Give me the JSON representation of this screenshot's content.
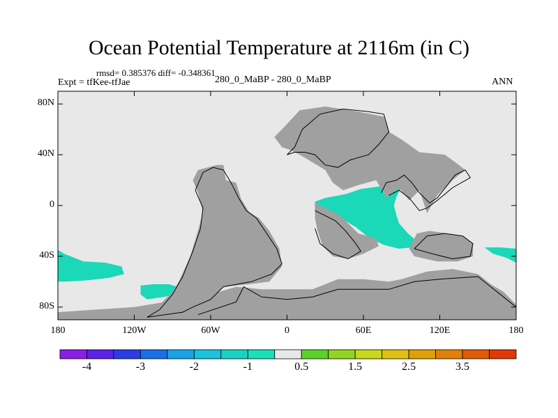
{
  "chart_data": {
    "type": "heatmap",
    "title": "Ocean Potential Temperature at 2116m (in C)",
    "stats_line": "rmsd= 0.385376 diff= -0.348361",
    "experiment_label": "Expt = tfKee-tfJae",
    "center_label": "280_0_MaBP - 280_0_MaBP",
    "season": "ANN",
    "xlim": [
      -180,
      180
    ],
    "ylim": [
      -90,
      90
    ],
    "x_ticks": [
      {
        "value": -180,
        "label": "180"
      },
      {
        "value": -120,
        "label": "120W"
      },
      {
        "value": -60,
        "label": "60W"
      },
      {
        "value": 0,
        "label": "0"
      },
      {
        "value": 60,
        "label": "60E"
      },
      {
        "value": 120,
        "label": "120E"
      },
      {
        "value": 180,
        "label": "180"
      }
    ],
    "y_ticks": [
      {
        "value": 80,
        "label": "80N"
      },
      {
        "value": 40,
        "label": "40N"
      },
      {
        "value": 0,
        "label": "0"
      },
      {
        "value": -40,
        "label": "40S"
      },
      {
        "value": -80,
        "label": "80S"
      }
    ],
    "colorbar": {
      "colors": [
        "#8a1ee6",
        "#5a22e6",
        "#2a3ce6",
        "#1a6ee6",
        "#1aa2e6",
        "#1ac2dc",
        "#1ad2c2",
        "#1ae0ba",
        "#e8e8e8",
        "#5ad228",
        "#92d424",
        "#c8d81c",
        "#e0c010",
        "#e0a008",
        "#e08008",
        "#e05a08",
        "#e03808"
      ],
      "labels": [
        "-4",
        "-3",
        "-2",
        "-1",
        "0.5",
        "1.5",
        "2.5",
        "3.5"
      ],
      "label_levels": [
        -4,
        -3,
        -2,
        -1,
        0.5,
        1.5,
        2.5,
        3.5
      ],
      "levels": [
        -4,
        -3.5,
        -3,
        -2.5,
        -2,
        -1.5,
        -1,
        -0.5,
        0.5,
        1,
        1.5,
        2,
        2.5,
        3,
        3.5,
        4
      ]
    },
    "background_value_color": "#e8e8e8",
    "land_color": "#a0a0a0",
    "anomaly_color": "#1ad8b8",
    "anomaly_regions": [
      {
        "name": "tropical Indian Ocean",
        "polygon": [
          [
            22,
            3
          ],
          [
            30,
            6
          ],
          [
            46,
            9
          ],
          [
            58,
            13
          ],
          [
            72,
            15
          ],
          [
            84,
            19
          ],
          [
            88,
            20
          ],
          [
            90,
            15
          ],
          [
            86,
            7
          ],
          [
            84,
            0
          ],
          [
            86,
            -8
          ],
          [
            88,
            -14
          ],
          [
            95,
            -22
          ],
          [
            102,
            -28
          ],
          [
            98,
            -33
          ],
          [
            88,
            -34
          ],
          [
            76,
            -31
          ],
          [
            64,
            -25
          ],
          [
            54,
            -17
          ],
          [
            44,
            -11
          ],
          [
            34,
            -7
          ],
          [
            26,
            -4
          ],
          [
            22,
            -1
          ]
        ]
      },
      {
        "name": "South Pacific west",
        "polygon": [
          [
            -180,
            -35
          ],
          [
            -175,
            -38
          ],
          [
            -160,
            -44
          ],
          [
            -143,
            -45
          ],
          [
            -130,
            -48
          ],
          [
            -128,
            -54
          ],
          [
            -140,
            -57
          ],
          [
            -158,
            -59
          ],
          [
            -174,
            -60
          ],
          [
            -180,
            -60
          ]
        ]
      },
      {
        "name": "South Pacific east",
        "polygon": [
          [
            -115,
            -63
          ],
          [
            -105,
            -62
          ],
          [
            -93,
            -62
          ],
          [
            -86,
            -64
          ],
          [
            -87,
            -70
          ],
          [
            -97,
            -72
          ],
          [
            -110,
            -74
          ],
          [
            -115,
            -70
          ]
        ]
      },
      {
        "name": "South Pacific dateline",
        "polygon": [
          [
            155,
            -33
          ],
          [
            168,
            -33
          ],
          [
            180,
            -34
          ],
          [
            180,
            -45
          ],
          [
            172,
            -41
          ],
          [
            162,
            -38
          ]
        ]
      }
    ],
    "land_regions": [
      {
        "name": "Americas",
        "polygon": [
          [
            -70,
            28
          ],
          [
            -55,
            32
          ],
          [
            -50,
            32
          ],
          [
            -48,
            20
          ],
          [
            -40,
            18
          ],
          [
            -36,
            5
          ],
          [
            -30,
            -5
          ],
          [
            -22,
            -10
          ],
          [
            -14,
            -20
          ],
          [
            -6,
            -34
          ],
          [
            -4,
            -48
          ],
          [
            -14,
            -60
          ],
          [
            -30,
            -62
          ],
          [
            -50,
            -64
          ],
          [
            -60,
            -74
          ],
          [
            -74,
            -80
          ],
          [
            -84,
            -86
          ],
          [
            -110,
            -88
          ],
          [
            -90,
            -68
          ],
          [
            -85,
            -60
          ],
          [
            -76,
            -40
          ],
          [
            -70,
            -20
          ],
          [
            -66,
            -5
          ],
          [
            -70,
            10
          ],
          [
            -74,
            20
          ]
        ]
      },
      {
        "name": "Eurasia",
        "polygon": [
          [
            10,
            75
          ],
          [
            30,
            78
          ],
          [
            56,
            74
          ],
          [
            76,
            70
          ],
          [
            80,
            58
          ],
          [
            90,
            52
          ],
          [
            104,
            42
          ],
          [
            124,
            40
          ],
          [
            135,
            32
          ],
          [
            140,
            28
          ],
          [
            130,
            20
          ],
          [
            118,
            8
          ],
          [
            110,
            -6
          ],
          [
            104,
            12
          ],
          [
            96,
            4
          ],
          [
            88,
            14
          ],
          [
            78,
            6
          ],
          [
            70,
            20
          ],
          [
            56,
            16
          ],
          [
            44,
            12
          ],
          [
            36,
            18
          ],
          [
            30,
            28
          ],
          [
            20,
            34
          ],
          [
            10,
            40
          ],
          [
            2,
            44
          ],
          [
            -4,
            46
          ],
          [
            -10,
            54
          ],
          [
            -4,
            60
          ]
        ]
      },
      {
        "name": "Africa",
        "polygon": [
          [
            22,
            2
          ],
          [
            34,
            -4
          ],
          [
            42,
            -8
          ],
          [
            50,
            -16
          ],
          [
            56,
            -22
          ],
          [
            70,
            -26
          ],
          [
            72,
            -32
          ],
          [
            60,
            -38
          ],
          [
            48,
            -42
          ],
          [
            36,
            -40
          ],
          [
            28,
            -32
          ],
          [
            24,
            -20
          ],
          [
            22,
            -10
          ]
        ]
      },
      {
        "name": "Australia",
        "polygon": [
          [
            102,
            -22
          ],
          [
            112,
            -20
          ],
          [
            126,
            -22
          ],
          [
            138,
            -24
          ],
          [
            146,
            -30
          ],
          [
            146,
            -40
          ],
          [
            134,
            -44
          ],
          [
            118,
            -44
          ],
          [
            100,
            -40
          ],
          [
            96,
            -34
          ]
        ]
      },
      {
        "name": "Antarctica",
        "polygon": [
          [
            -180,
            -84
          ],
          [
            -150,
            -82
          ],
          [
            -120,
            -80
          ],
          [
            -96,
            -76
          ],
          [
            -80,
            -68
          ],
          [
            -60,
            -70
          ],
          [
            -40,
            -64
          ],
          [
            -20,
            -66
          ],
          [
            0,
            -66
          ],
          [
            20,
            -66
          ],
          [
            40,
            -58
          ],
          [
            60,
            -58
          ],
          [
            80,
            -60
          ],
          [
            90,
            -58
          ],
          [
            110,
            -52
          ],
          [
            130,
            -50
          ],
          [
            150,
            -54
          ],
          [
            160,
            -62
          ],
          [
            170,
            -68
          ],
          [
            180,
            -78
          ],
          [
            180,
            -90
          ],
          [
            -180,
            -90
          ]
        ]
      }
    ],
    "coastlines": [
      {
        "points": [
          [
            -110,
            -88
          ],
          [
            -82,
            -84
          ],
          [
            -74,
            -80
          ],
          [
            -60,
            -74
          ],
          [
            -50,
            -64
          ],
          [
            -28,
            -60
          ],
          [
            -12,
            -54
          ],
          [
            -4,
            -46
          ],
          [
            -8,
            -34
          ],
          [
            -16,
            -22
          ],
          [
            -24,
            -10
          ],
          [
            -32,
            -4
          ],
          [
            -38,
            6
          ],
          [
            -44,
            18
          ],
          [
            -50,
            28
          ],
          [
            -58,
            30
          ],
          [
            -66,
            26
          ],
          [
            -72,
            12
          ],
          [
            -66,
            -2
          ],
          [
            -68,
            -18
          ],
          [
            -74,
            -36
          ],
          [
            -82,
            -56
          ],
          [
            -90,
            -70
          ],
          [
            -100,
            -82
          ],
          [
            -110,
            -88
          ]
        ]
      },
      {
        "points": [
          [
            0,
            40
          ],
          [
            6,
            46
          ],
          [
            12,
            60
          ],
          [
            26,
            72
          ],
          [
            44,
            76
          ],
          [
            64,
            74
          ],
          [
            76,
            72
          ],
          [
            80,
            58
          ],
          [
            72,
            48
          ],
          [
            64,
            40
          ],
          [
            50,
            36
          ],
          [
            40,
            30
          ],
          [
            30,
            32
          ],
          [
            22,
            40
          ],
          [
            14,
            42
          ],
          [
            6,
            42
          ],
          [
            0,
            40
          ]
        ]
      },
      {
        "points": [
          [
            74,
            10
          ],
          [
            78,
            18
          ],
          [
            86,
            20
          ],
          [
            92,
            24
          ],
          [
            98,
            18
          ],
          [
            104,
            10
          ],
          [
            112,
            2
          ],
          [
            118,
            6
          ],
          [
            126,
            16
          ],
          [
            132,
            24
          ],
          [
            140,
            28
          ],
          [
            144,
            22
          ],
          [
            130,
            14
          ],
          [
            118,
            4
          ],
          [
            110,
            -2
          ],
          [
            104,
            -4
          ],
          [
            96,
            6
          ],
          [
            88,
            12
          ],
          [
            80,
            8
          ]
        ]
      },
      {
        "points": [
          [
            22,
            -4
          ],
          [
            30,
            -8
          ],
          [
            38,
            -12
          ],
          [
            46,
            -20
          ],
          [
            54,
            -30
          ],
          [
            58,
            -36
          ],
          [
            48,
            -42
          ],
          [
            36,
            -38
          ],
          [
            26,
            -30
          ],
          [
            22,
            -18
          ]
        ]
      },
      {
        "points": [
          [
            100,
            -34
          ],
          [
            114,
            -38
          ],
          [
            130,
            -42
          ],
          [
            144,
            -40
          ],
          [
            146,
            -30
          ],
          [
            138,
            -24
          ],
          [
            124,
            -22
          ],
          [
            110,
            -24
          ],
          [
            100,
            -34
          ]
        ]
      },
      {
        "points": [
          [
            -70,
            -86
          ],
          [
            -40,
            -76
          ],
          [
            -34,
            -64
          ],
          [
            -20,
            -72
          ],
          [
            0,
            -74
          ],
          [
            20,
            -72
          ],
          [
            40,
            -66
          ],
          [
            60,
            -66
          ],
          [
            80,
            -66
          ],
          [
            100,
            -60
          ],
          [
            120,
            -58
          ],
          [
            150,
            -56
          ],
          [
            160,
            -64
          ],
          [
            170,
            -72
          ],
          [
            180,
            -80
          ]
        ]
      }
    ]
  }
}
